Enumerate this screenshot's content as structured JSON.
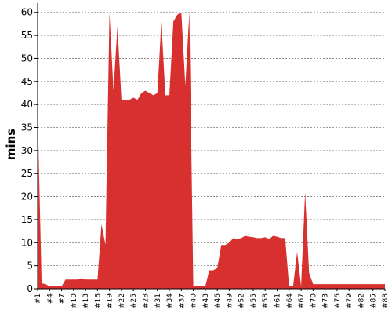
{
  "chart_data": {
    "type": "area",
    "ylabel": "mins",
    "xlabel": "",
    "ylim": [
      0,
      62
    ],
    "yticks": [
      0,
      5,
      10,
      15,
      20,
      25,
      30,
      35,
      40,
      45,
      50,
      55,
      60
    ],
    "grid": "horizontal-dashed",
    "color": "#d8302f",
    "x_tick_labels": [
      "#1",
      "#4",
      "#7",
      "#10",
      "#13",
      "#16",
      "#19",
      "#22",
      "#25",
      "#28",
      "#31",
      "#34",
      "#37",
      "#40",
      "#43",
      "#46",
      "#49",
      "#52",
      "#55",
      "#58",
      "#61",
      "#64",
      "#67",
      "#70",
      "#73",
      "#76",
      "#79",
      "#82",
      "#85",
      "#88"
    ],
    "values": [
      39,
      1.2,
      1.0,
      0.5,
      0.5,
      0.5,
      0.5,
      2.0,
      2.0,
      2.0,
      2.0,
      2.3,
      2.0,
      2.0,
      2.0,
      2.0,
      14.0,
      9.5,
      60.0,
      43.0,
      57.0,
      41.0,
      41.0,
      41.0,
      41.5,
      41.0,
      42.5,
      43.0,
      42.5,
      42.0,
      42.5,
      58.0,
      42.0,
      42.0,
      58.0,
      59.5,
      60.0,
      44.0,
      60.0,
      0.5,
      0.5,
      0.5,
      0.5,
      4.0,
      4.0,
      4.5,
      9.5,
      9.5,
      10.0,
      11.0,
      10.8,
      11.0,
      11.5,
      11.3,
      11.2,
      11.0,
      11.0,
      11.2,
      10.8,
      11.5,
      11.3,
      11.0,
      11.0,
      0.5,
      0.5,
      8.0,
      0.5,
      21.0,
      3.5,
      1.0,
      1.0,
      1.0,
      1.0,
      1.0,
      1.0,
      1.0,
      1.0,
      1.0,
      1.0,
      1.0,
      1.0,
      1.0,
      1.0,
      1.0,
      1.0,
      1.0,
      1.0,
      1.0
    ]
  }
}
